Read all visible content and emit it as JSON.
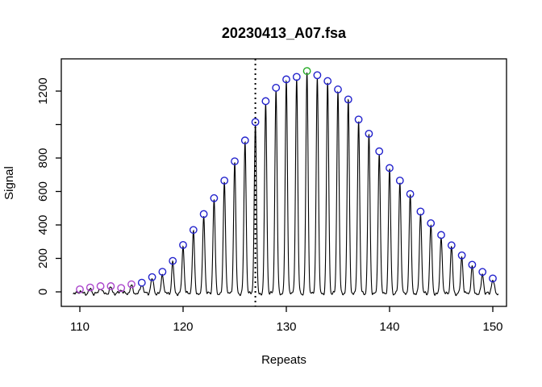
{
  "chart_data": {
    "type": "line",
    "title": "20230413_A07.fsa",
    "xlabel": "Repeats",
    "ylabel": "Signal",
    "grid": false,
    "legend": "none",
    "xlim": [
      108.2,
      151.3
    ],
    "ylim": [
      -87,
      1393
    ],
    "x_ticks": [
      110,
      120,
      130,
      140,
      150
    ],
    "y_ticks": [
      {
        "v": 0,
        "label": "0"
      },
      {
        "v": 200,
        "label": "200"
      },
      {
        "v": 400,
        "label": "400"
      },
      {
        "v": 600,
        "label": "600"
      },
      {
        "v": 800,
        "label": "800"
      },
      {
        "v": 1000,
        "label": ""
      },
      {
        "v": 1200,
        "label": "1200"
      }
    ],
    "vline_x": 127,
    "vline_style": "dotted",
    "series": [
      {
        "name": "signal_trace",
        "x": [
          110,
          111,
          112,
          113,
          114,
          115,
          116,
          117,
          118,
          119,
          120,
          121,
          122,
          123,
          124,
          125,
          126,
          127,
          128,
          129,
          130,
          131,
          132,
          133,
          134,
          135,
          136,
          137,
          138,
          139,
          140,
          141,
          142,
          143,
          144,
          145,
          146,
          147,
          148,
          149,
          150
        ],
        "values": [
          15,
          26,
          34,
          34,
          23,
          45,
          55,
          88,
          120,
          185,
          280,
          370,
          465,
          560,
          665,
          780,
          905,
          1015,
          1140,
          1220,
          1270,
          1285,
          1320,
          1295,
          1260,
          1210,
          1150,
          1030,
          945,
          840,
          740,
          665,
          585,
          480,
          410,
          340,
          278,
          218,
          162,
          119,
          80
        ]
      }
    ],
    "markers": {
      "shape": "open-circle",
      "colors": [
        "#AA44CC",
        "#AA44CC",
        "#AA44CC",
        "#AA44CC",
        "#AA44CC",
        "#AA44CC",
        "#2222CC",
        "#2222CC",
        "#2222CC",
        "#2222CC",
        "#2222CC",
        "#2222CC",
        "#2222CC",
        "#2222CC",
        "#2222CC",
        "#2222CC",
        "#2222CC",
        "#2222CC",
        "#2222CC",
        "#2222CC",
        "#2222CC",
        "#2222CC",
        "#22AA22",
        "#2222CC",
        "#2222CC",
        "#2222CC",
        "#2222CC",
        "#2222CC",
        "#2222CC",
        "#2222CC",
        "#2222CC",
        "#2222CC",
        "#2222CC",
        "#2222CC",
        "#2222CC",
        "#2222CC",
        "#2222CC",
        "#2222CC",
        "#2222CC",
        "#2222CC",
        "#2222CC"
      ]
    },
    "colors": {
      "trace": "#000000",
      "axis": "#000000",
      "vline": "#000000",
      "background": "#ffffff",
      "purple_marker": "#AA44CC",
      "blue_marker": "#2222CC",
      "green_marker": "#22AA22"
    }
  }
}
